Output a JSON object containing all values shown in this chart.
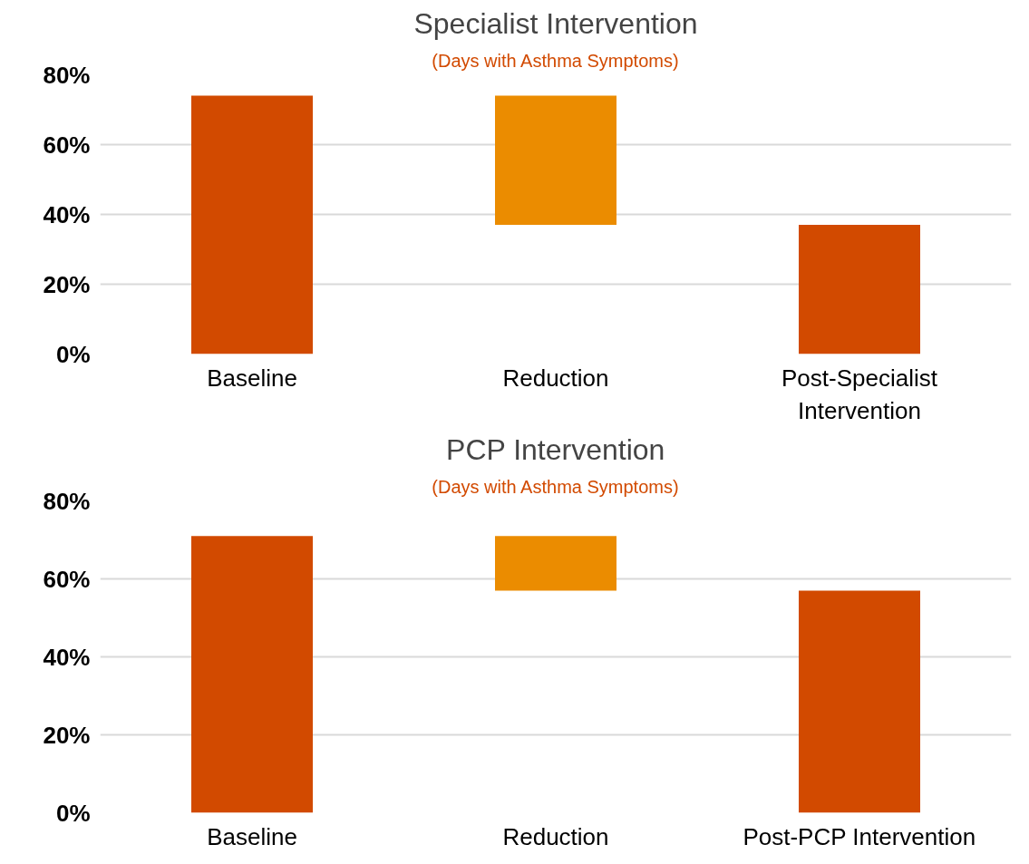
{
  "chart_data": [
    {
      "type": "bar",
      "title": "Specialist Intervention",
      "subtitle": "(Days with Asthma Symptoms)",
      "categories": [
        "Baseline",
        "Reduction",
        "Post-Specialist Intervention"
      ],
      "values": [
        74,
        37,
        37
      ],
      "base": [
        0,
        37,
        0
      ],
      "colors": [
        "#d24a00",
        "#eb8c00",
        "#d24a00"
      ],
      "ylim": [
        0,
        80
      ],
      "yticks": [
        {
          "value": 0,
          "label": "0%"
        },
        {
          "value": 20,
          "label": "20%"
        },
        {
          "value": 40,
          "label": "40%"
        },
        {
          "value": 60,
          "label": "60%"
        },
        {
          "value": 80,
          "label": "80%"
        }
      ],
      "grid": "y"
    },
    {
      "type": "bar",
      "title": "PCP Intervention",
      "subtitle": "(Days with Asthma Symptoms)",
      "categories": [
        "Baseline",
        "Reduction",
        "Post-PCP Intervention"
      ],
      "values": [
        71,
        14,
        57
      ],
      "base": [
        0,
        57,
        0
      ],
      "colors": [
        "#d24a00",
        "#eb8c00",
        "#d24a00"
      ],
      "ylim": [
        0,
        80
      ],
      "yticks": [
        {
          "value": 0,
          "label": "0%"
        },
        {
          "value": 20,
          "label": "20%"
        },
        {
          "value": 40,
          "label": "40%"
        },
        {
          "value": 60,
          "label": "60%"
        },
        {
          "value": 80,
          "label": "80%"
        }
      ],
      "grid": "y"
    }
  ]
}
